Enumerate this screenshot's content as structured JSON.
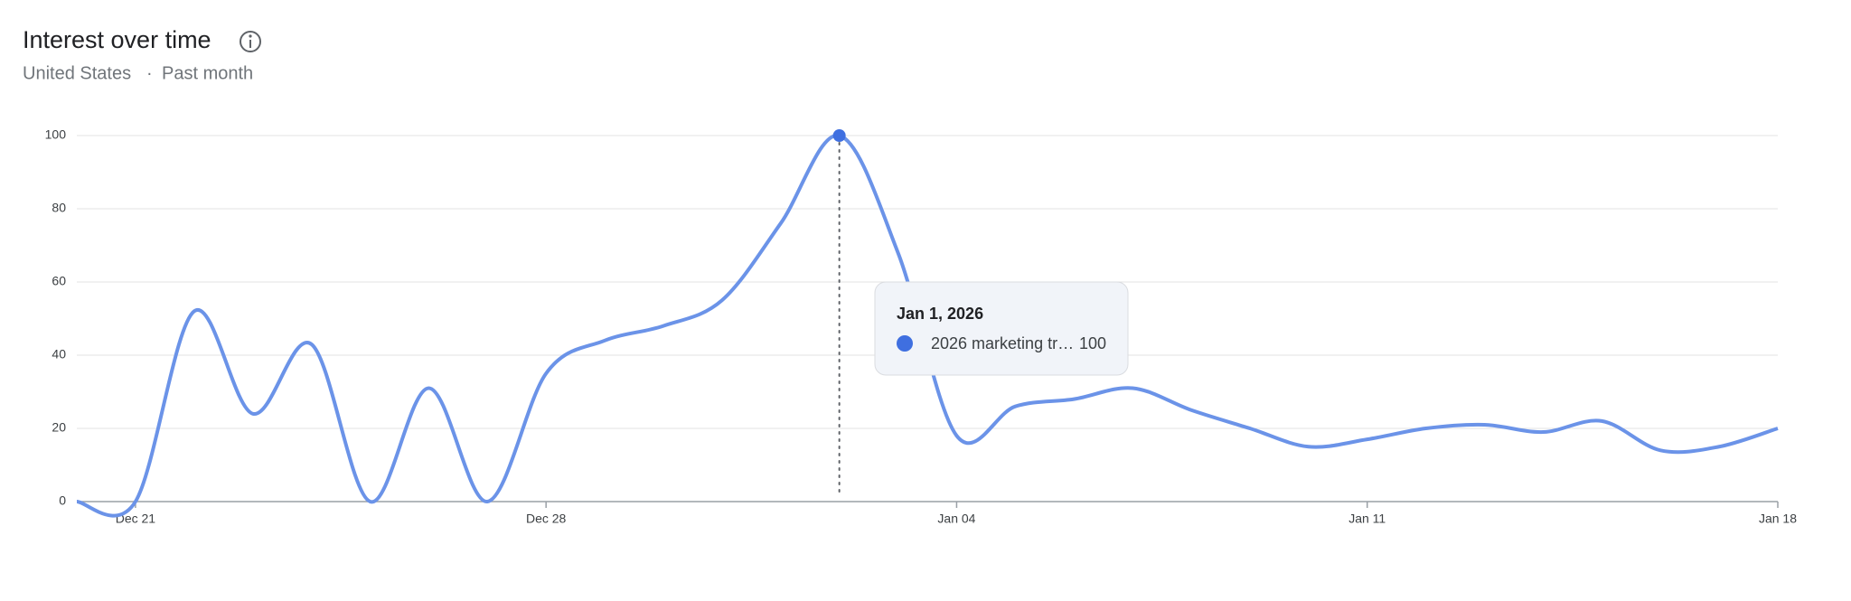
{
  "chart_data": {
    "type": "line",
    "title": "Interest over time",
    "subtitle": [
      "United States",
      "Past month"
    ],
    "categories": [
      null,
      "Dec 21",
      null,
      null,
      null,
      null,
      null,
      null,
      "Dec 28",
      null,
      null,
      null,
      null,
      null,
      null,
      "Jan 04",
      null,
      null,
      null,
      null,
      null,
      null,
      "Jan 11",
      null,
      null,
      null,
      null,
      null,
      null,
      "Jan 18"
    ],
    "series": [
      {
        "name": "2026 marketing tr…",
        "color": "#6b93e8",
        "values": [
          0,
          0,
          52,
          24,
          43,
          0,
          31,
          0,
          35,
          44,
          48,
          55,
          76,
          100,
          68,
          18,
          26,
          28,
          31,
          25,
          20,
          15,
          17,
          20,
          21,
          19,
          22,
          14,
          15,
          20
        ]
      }
    ],
    "ylim": [
      0,
      100
    ],
    "yticks": [
      0,
      20,
      40,
      60,
      80,
      100
    ],
    "grid": true,
    "tooltip": {
      "title": "Jan 1, 2026"
    }
  }
}
